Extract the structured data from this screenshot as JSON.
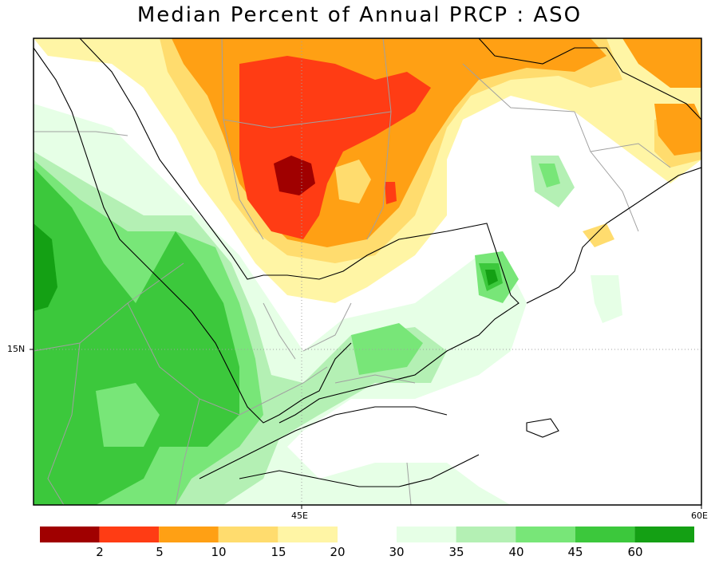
{
  "title": "Median Percent of Annual PRCP  :  ASO",
  "axes": {
    "lon_ticks": [
      "45E",
      "60E"
    ],
    "lat_ticks": [
      "15N"
    ]
  },
  "colorbar": {
    "dry_labels": [
      "2",
      "5",
      "10",
      "15",
      "20"
    ],
    "wet_labels": [
      "30",
      "35",
      "40",
      "45",
      "60"
    ],
    "dry_colors": [
      "#a00000",
      "#ff3c14",
      "#ffa014",
      "#ffdc6e",
      "#fff5a5"
    ],
    "wet_colors": [
      "#e6ffe6",
      "#b4f0b4",
      "#78e678",
      "#3cc83c",
      "#14a014"
    ]
  },
  "palette": {
    "land_base": "#ffffff",
    "boundary": "#000000",
    "country_border": "#a0a0a0"
  }
}
